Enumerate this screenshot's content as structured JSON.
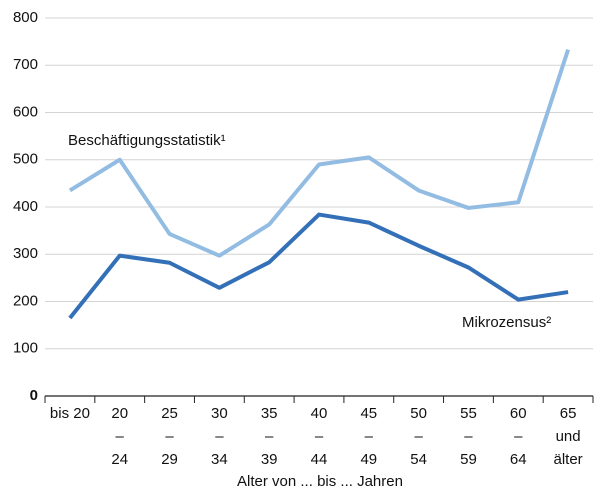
{
  "chart_data": {
    "type": "line",
    "xlabel": "Alter von ... bis ... Jahren",
    "categories": [
      [
        "bis 20"
      ],
      [
        "20",
        "–",
        "24"
      ],
      [
        "25",
        "–",
        "29"
      ],
      [
        "30",
        "–",
        "34"
      ],
      [
        "35",
        "–",
        "39"
      ],
      [
        "40",
        "–",
        "44"
      ],
      [
        "45",
        "–",
        "49"
      ],
      [
        "50",
        "–",
        "54"
      ],
      [
        "55",
        "–",
        "59"
      ],
      [
        "60",
        "–",
        "64"
      ],
      [
        "65",
        "und",
        "älter"
      ]
    ],
    "series": [
      {
        "name": "Beschäftigungsstatistik¹",
        "color": "#93bce3",
        "values": [
          435,
          500,
          343,
          297,
          363,
          490,
          505,
          435,
          398,
          410,
          733
        ]
      },
      {
        "name": "Mikrozensus²",
        "color": "#3370b7",
        "values": [
          165,
          297,
          282,
          229,
          283,
          384,
          367,
          318,
          272,
          204,
          220
        ]
      }
    ],
    "ylim": [
      0,
      800
    ],
    "yticks": [
      0,
      100,
      200,
      300,
      400,
      500,
      600,
      700,
      800
    ],
    "grid": true
  }
}
